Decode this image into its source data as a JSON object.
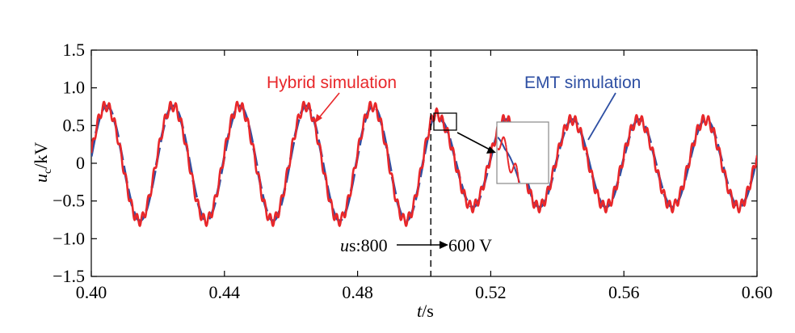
{
  "chart_data": {
    "type": "line",
    "title": "",
    "xlabel": "t/s",
    "ylabel": "uc/kV",
    "xlim": [
      0.4,
      0.6
    ],
    "ylim": [
      -1.5,
      1.5
    ],
    "x_ticks": [
      "0.40",
      "0.44",
      "0.48",
      "0.52",
      "0.56",
      "0.60"
    ],
    "y_ticks": [
      "1.5",
      "1.0",
      "0.5",
      "0",
      "-0.5",
      "-1.0",
      "-1.5"
    ],
    "x_tick_values": [
      0.4,
      0.44,
      0.48,
      0.52,
      0.56,
      0.6
    ],
    "y_tick_values": [
      1.5,
      1.0,
      0.5,
      0,
      -0.5,
      -1.0,
      -1.5
    ],
    "switch_time": 0.502,
    "series": [
      {
        "name": "EMT simulation",
        "style": "dashed",
        "color": "#2e4fa3",
        "frequency_hz": 50,
        "amplitude_before_kV": 0.76,
        "amplitude_after_kV": 0.58
      },
      {
        "name": "Hybrid simulation",
        "style": "solid",
        "color": "#e8272a",
        "frequency_hz": 50,
        "amplitude_before_kV": 0.76,
        "amplitude_after_kV": 0.58,
        "ripple_kV": 0.07,
        "ripple_frequency_hz": 600
      }
    ],
    "annotations": {
      "hybrid_label": "Hybrid simulation",
      "emt_label": "EMT simulation",
      "step_from_prefix": "us:800",
      "step_to": "600 V"
    }
  }
}
